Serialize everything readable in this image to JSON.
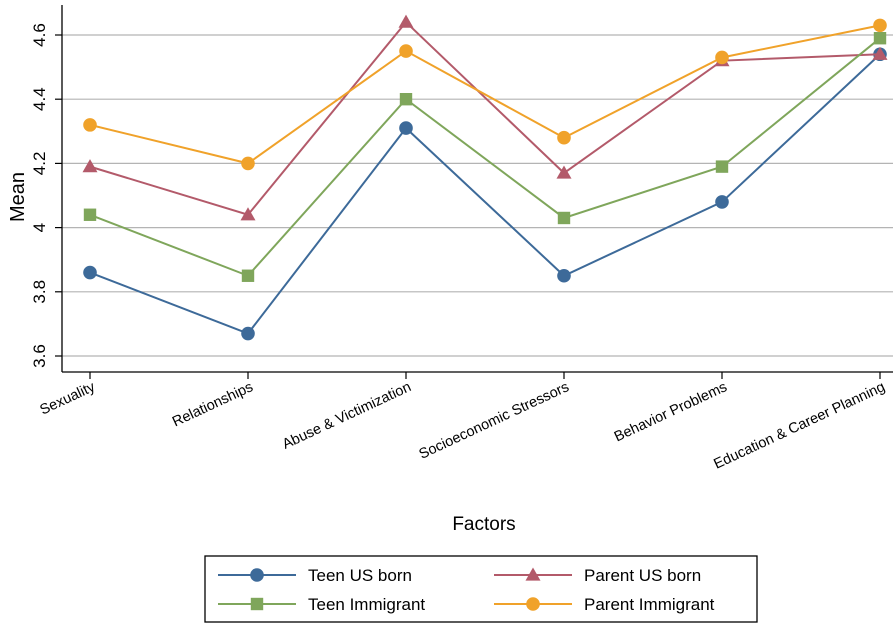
{
  "chart_data": {
    "type": "line",
    "title": "",
    "xlabel": "Factors",
    "ylabel": "Mean",
    "categories": [
      "Sexuality",
      "Relationships",
      "Abuse & Victimization",
      "Socioeconomic Stressors",
      "Behavior Problems",
      "Education & Career Planning"
    ],
    "ylim": [
      3.55,
      4.67
    ],
    "yticks": [
      3.6,
      3.8,
      4,
      4.2,
      4.4,
      4.6
    ],
    "ytick_labels": [
      "3.6",
      "3.8",
      "4",
      "4.2",
      "4.4",
      "4.6"
    ],
    "grid": true,
    "legend_position": "bottom",
    "series": [
      {
        "name": "Teen US born",
        "color": "#3d6a99",
        "marker": "circle",
        "values": [
          3.86,
          3.67,
          4.31,
          3.85,
          4.08,
          4.54
        ]
      },
      {
        "name": "Parent US born",
        "color": "#b35a6a",
        "marker": "triangle",
        "values": [
          4.19,
          4.04,
          4.64,
          4.17,
          4.52,
          4.54
        ]
      },
      {
        "name": "Teen Immigrant",
        "color": "#7fa65b",
        "marker": "square",
        "values": [
          4.04,
          3.85,
          4.4,
          4.03,
          4.19,
          4.59
        ]
      },
      {
        "name": "Parent Immigrant",
        "color": "#f0a22a",
        "marker": "circle",
        "values": [
          4.32,
          4.2,
          4.55,
          4.28,
          4.53,
          4.63
        ]
      }
    ]
  }
}
